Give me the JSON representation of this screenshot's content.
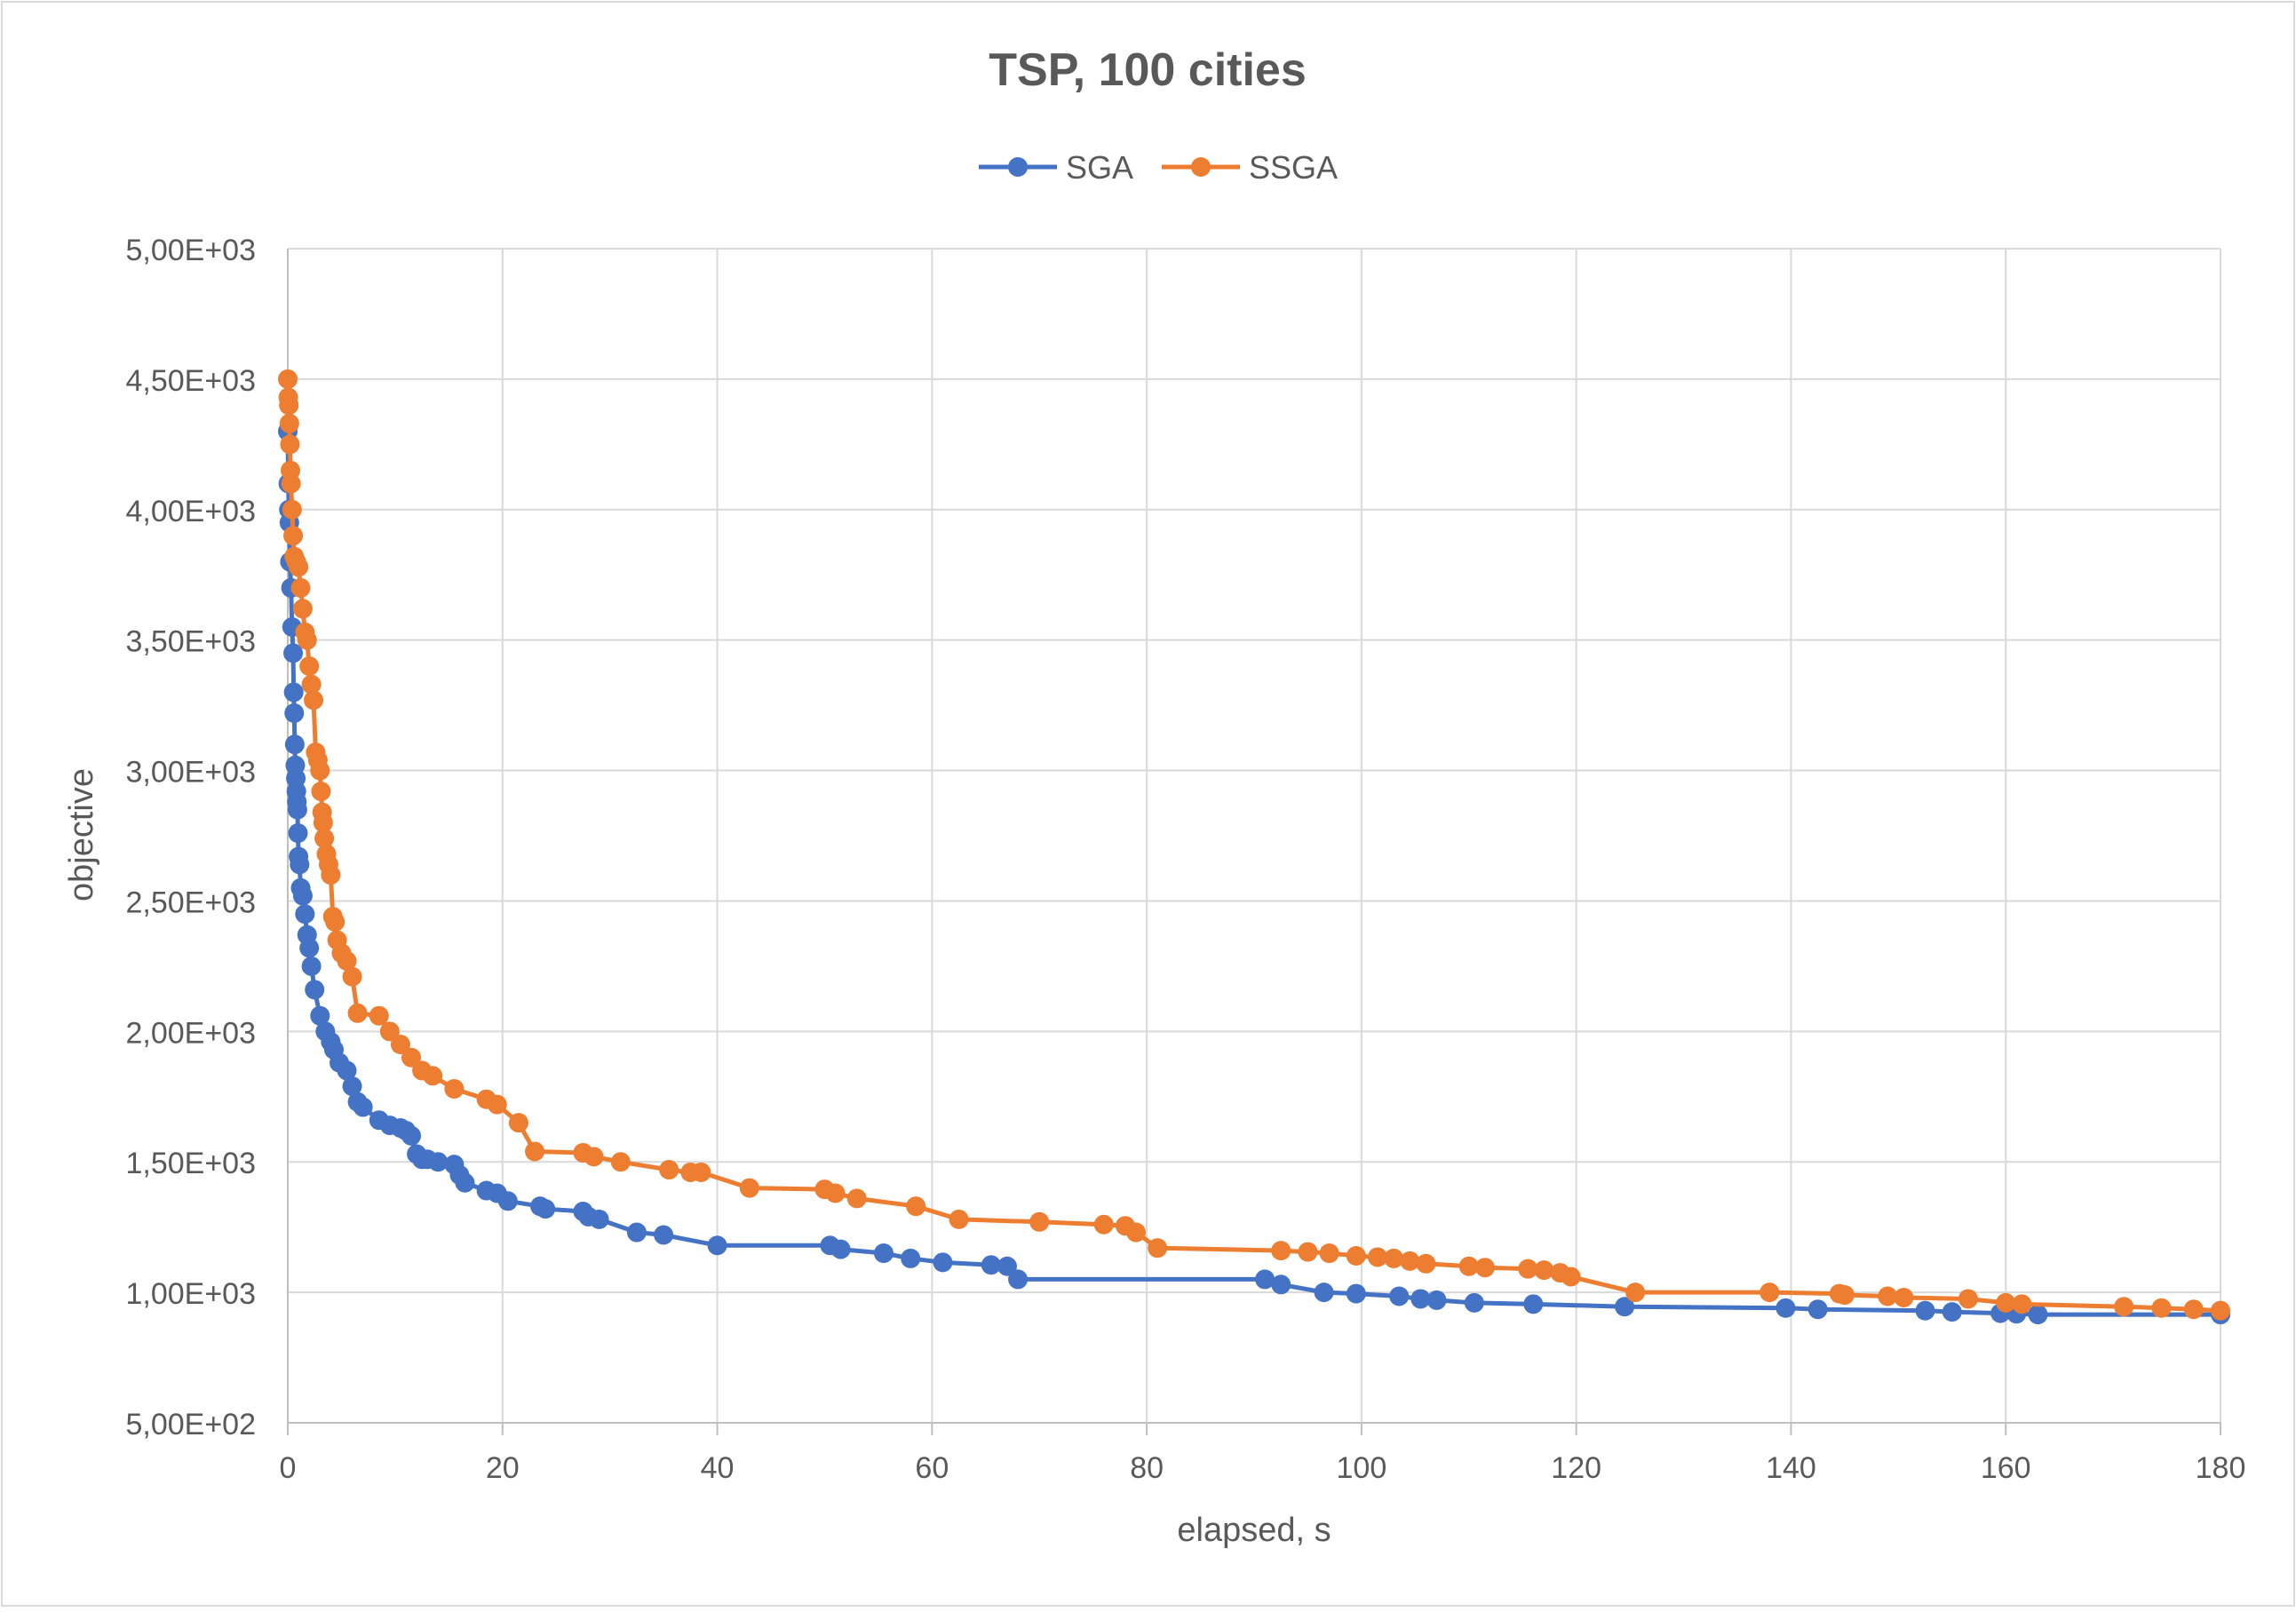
{
  "chart_data": {
    "type": "scatter",
    "title": "TSP, 100 cities",
    "xlabel": "elapsed, s",
    "ylabel": "objective",
    "xlim": [
      0,
      180
    ],
    "ylim": [
      500,
      5000
    ],
    "x_ticks": [
      0,
      20,
      40,
      60,
      80,
      100,
      120,
      140,
      160,
      180
    ],
    "x_tick_labels": [
      "0",
      "20",
      "40",
      "60",
      "80",
      "100",
      "120",
      "140",
      "160",
      "180"
    ],
    "y_ticks": [
      500,
      1000,
      1500,
      2000,
      2500,
      3000,
      3500,
      4000,
      4500,
      5000
    ],
    "y_tick_labels": [
      "5,00E+02",
      "1,00E+03",
      "1,50E+03",
      "2,00E+03",
      "2,50E+03",
      "3,00E+03",
      "3,50E+03",
      "4,00E+03",
      "4,50E+03",
      "5,00E+03"
    ],
    "grid": true,
    "legend_position": "top-center",
    "series": [
      {
        "name": "SGA",
        "color": "#4472C4",
        "x": [
          0,
          0.05,
          0.1,
          0.15,
          0.2,
          0.3,
          0.4,
          0.5,
          0.55,
          0.6,
          0.65,
          0.7,
          0.75,
          0.8,
          0.85,
          0.9,
          0.95,
          1.0,
          1.1,
          1.2,
          1.4,
          1.6,
          1.8,
          2.0,
          2.2,
          2.5,
          3.0,
          3.5,
          4.0,
          4.3,
          4.8,
          5.5,
          6.0,
          6.5,
          7.0,
          8.5,
          9.5,
          10.5,
          11.0,
          11.5,
          12.0,
          12.5,
          13.0,
          14.0,
          15.5,
          16.0,
          16.5,
          18.5,
          19.5,
          20.5,
          23.5,
          24.0,
          27.5,
          28.0,
          29.0,
          32.5,
          35.0,
          40.0,
          50.5,
          51.5,
          55.5,
          58.0,
          61.0,
          65.5,
          67.0,
          68.0,
          91.0,
          92.5,
          96.5,
          99.5,
          103.5,
          105.5,
          107.0,
          110.5,
          116.0,
          124.5,
          139.5,
          142.5,
          152.5,
          155.0,
          159.5,
          161.0,
          163.0,
          180.0
        ],
        "y": [
          4300,
          4100,
          4000,
          3950,
          3800,
          3700,
          3550,
          3450,
          3300,
          3220,
          3100,
          3020,
          2970,
          2920,
          2880,
          2850,
          2760,
          2670,
          2640,
          2550,
          2520,
          2450,
          2370,
          2320,
          2250,
          2160,
          2060,
          2000,
          1960,
          1930,
          1880,
          1850,
          1790,
          1730,
          1710,
          1660,
          1640,
          1630,
          1620,
          1600,
          1530,
          1510,
          1510,
          1500,
          1490,
          1450,
          1420,
          1390,
          1380,
          1350,
          1330,
          1320,
          1310,
          1290,
          1280,
          1230,
          1220,
          1180,
          1180,
          1165,
          1150,
          1130,
          1115,
          1105,
          1100,
          1050,
          1050,
          1030,
          1000,
          995,
          985,
          975,
          970,
          960,
          955,
          945,
          940,
          935,
          930,
          925,
          920,
          918,
          915,
          915
        ]
      },
      {
        "name": "SSGA",
        "color": "#ED7D31",
        "x": [
          0,
          0.05,
          0.1,
          0.15,
          0.2,
          0.25,
          0.3,
          0.4,
          0.5,
          0.6,
          0.8,
          1.0,
          1.2,
          1.4,
          1.6,
          1.8,
          2.0,
          2.2,
          2.4,
          2.6,
          2.8,
          3.0,
          3.1,
          3.2,
          3.3,
          3.4,
          3.6,
          3.8,
          4.0,
          4.2,
          4.4,
          4.6,
          5.0,
          5.5,
          6.0,
          6.5,
          8.5,
          9.5,
          10.5,
          11.5,
          12.5,
          13.5,
          15.5,
          18.5,
          19.5,
          21.5,
          23.0,
          27.5,
          28.5,
          31.0,
          35.5,
          37.5,
          38.5,
          43.0,
          50.0,
          51.0,
          53.0,
          58.5,
          62.5,
          70.0,
          76.0,
          78.0,
          79.0,
          81.0,
          92.5,
          95.0,
          97.0,
          99.5,
          101.5,
          103.0,
          104.5,
          106.0,
          110.0,
          111.5,
          115.5,
          117.0,
          118.5,
          119.5,
          125.5,
          138.0,
          144.5,
          145.0,
          149.0,
          150.5,
          156.5,
          160.0,
          161.5,
          171.0,
          174.5,
          177.5,
          180.0
        ],
        "y": [
          4500,
          4430,
          4400,
          4330,
          4250,
          4150,
          4100,
          4000,
          3900,
          3820,
          3800,
          3780,
          3700,
          3620,
          3530,
          3500,
          3400,
          3330,
          3270,
          3070,
          3040,
          3000,
          2920,
          2840,
          2800,
          2740,
          2680,
          2640,
          2600,
          2440,
          2420,
          2350,
          2300,
          2270,
          2210,
          2070,
          2060,
          2000,
          1950,
          1900,
          1850,
          1830,
          1780,
          1740,
          1720,
          1650,
          1540,
          1535,
          1520,
          1500,
          1470,
          1460,
          1460,
          1400,
          1395,
          1380,
          1360,
          1330,
          1280,
          1270,
          1260,
          1255,
          1230,
          1170,
          1160,
          1155,
          1150,
          1140,
          1135,
          1130,
          1120,
          1110,
          1100,
          1095,
          1090,
          1085,
          1075,
          1060,
          1000,
          1000,
          995,
          990,
          985,
          980,
          975,
          960,
          955,
          945,
          940,
          935,
          930
        ]
      }
    ]
  }
}
